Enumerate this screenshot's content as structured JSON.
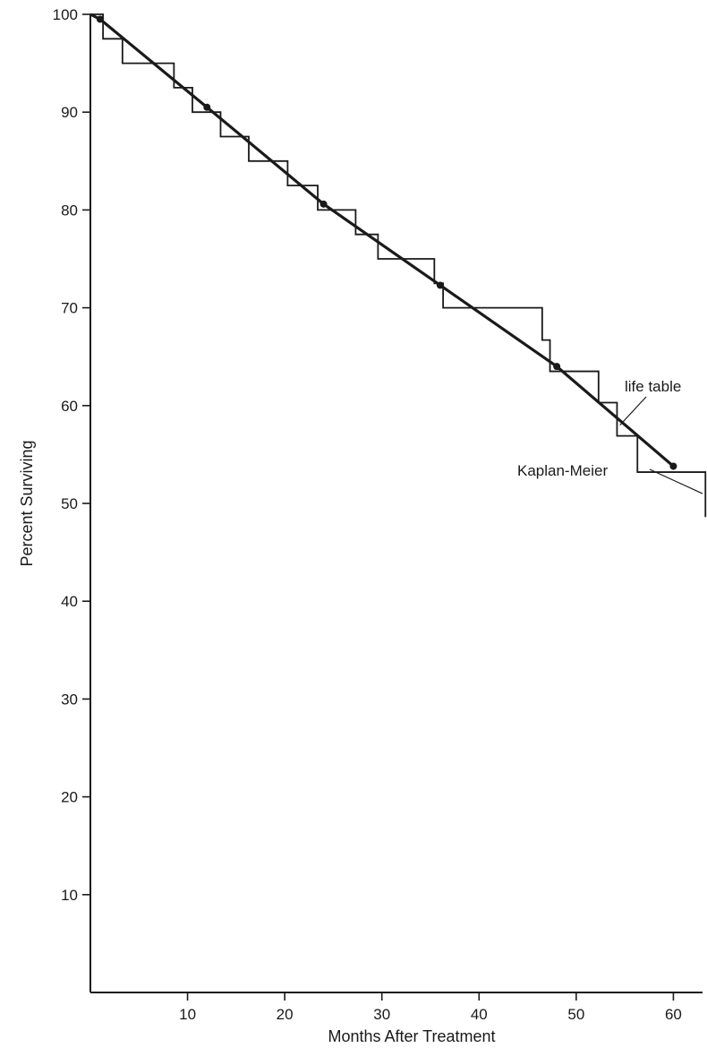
{
  "chart_data": {
    "type": "line",
    "title": "",
    "xlabel": "Months After Treatment",
    "ylabel": "Percent Surviving",
    "xlim": [
      0,
      63
    ],
    "ylim": [
      0,
      100
    ],
    "x_ticks": [
      10,
      20,
      30,
      40,
      50,
      60
    ],
    "y_ticks": [
      10,
      20,
      30,
      40,
      50,
      60,
      70,
      80,
      90,
      100
    ],
    "grid": false,
    "legend": "none",
    "annotations": [
      {
        "text": "life table",
        "series": "life table"
      },
      {
        "text": "Kaplan-Meier",
        "series": "Kaplan-Meier"
      }
    ],
    "series": [
      {
        "name": "life table",
        "style": "line",
        "color": "#1a1a1a",
        "x": [
          0,
          1,
          12,
          24,
          36,
          48,
          60
        ],
        "y": [
          100,
          99.5,
          90.5,
          80.6,
          72.3,
          64,
          53.8
        ]
      },
      {
        "name": "Kaplan-Meier",
        "style": "step",
        "color": "#1a1a1a",
        "x": [
          0,
          1.3,
          3.3,
          8.6,
          10.5,
          13.4,
          16.3,
          20.3,
          23.4,
          27.3,
          29.6,
          35.4,
          36.3,
          46.5,
          47.3,
          52.3,
          54.2,
          56.3,
          63.3
        ],
        "y": [
          100,
          97.5,
          95,
          92.5,
          90,
          87.5,
          85,
          82.5,
          80,
          77.5,
          75,
          72.5,
          70,
          66.7,
          63.5,
          60.3,
          56.9,
          53.2,
          48.6
        ]
      }
    ]
  }
}
